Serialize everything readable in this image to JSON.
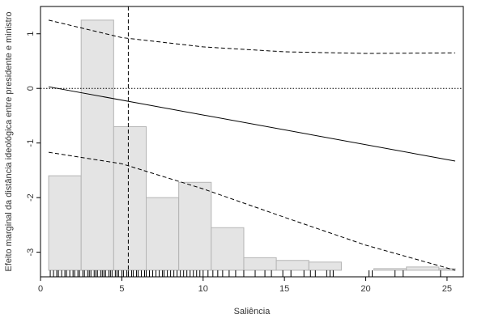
{
  "chart_data": {
    "type": "line",
    "title": "",
    "xlabel": "Saliência",
    "ylabel": "Efeito marginal da distância ideológica entre presidente e ministro",
    "xlim": [
      0,
      26
    ],
    "ylim": [
      -3.45,
      1.5
    ],
    "x_ticks": [
      0,
      5,
      10,
      15,
      20,
      25
    ],
    "y_ticks": [
      1,
      0,
      -1,
      -2,
      -3
    ],
    "grid": false,
    "legend": "none",
    "series": [
      {
        "style": "solid",
        "x": [
          0.5,
          25.5
        ],
        "y": [
          0.03,
          -1.33
        ]
      },
      {
        "style": "dashed",
        "x": [
          0.5,
          5,
          10,
          15,
          20,
          25.5
        ],
        "y": [
          1.25,
          0.93,
          0.76,
          0.67,
          0.64,
          0.65
        ]
      },
      {
        "style": "dashed",
        "x": [
          0.5,
          5,
          10,
          15,
          20,
          25.5
        ],
        "y": [
          -1.17,
          -1.38,
          -1.84,
          -2.36,
          -2.87,
          -3.33
        ]
      }
    ],
    "reference_lines": {
      "horizontal_y": 0,
      "vertical_x": 5.4
    },
    "histogram": {
      "bin_edges": [
        0.5,
        2.5,
        4.5,
        6.5,
        8.5,
        10.5,
        12.5,
        14.5,
        16.5,
        18.5,
        20.5,
        22.5,
        24.5,
        25.5
      ],
      "tops": [
        -1.6,
        1.25,
        -0.7,
        -2.0,
        -1.72,
        -2.55,
        -3.1,
        -3.15,
        -3.18,
        -3.33,
        -3.3,
        -3.27,
        -3.3
      ],
      "baseline": -3.33
    },
    "rug_x": [
      0.6,
      0.8,
      1.0,
      1.1,
      1.3,
      1.5,
      1.6,
      1.8,
      2.0,
      2.1,
      2.3,
      2.4,
      2.6,
      2.7,
      2.9,
      3.0,
      3.1,
      3.3,
      3.4,
      3.5,
      3.7,
      3.8,
      3.9,
      4.0,
      4.2,
      4.3,
      4.4,
      4.6,
      4.7,
      4.8,
      5.0,
      5.1,
      5.3,
      5.4,
      5.6,
      5.7,
      5.9,
      6.0,
      6.2,
      6.4,
      6.5,
      6.7,
      6.9,
      7.1,
      7.3,
      7.5,
      7.6,
      7.8,
      8.0,
      8.2,
      8.4,
      8.6,
      8.8,
      9.0,
      9.2,
      9.4,
      9.6,
      9.8,
      10.0,
      10.3,
      10.6,
      10.9,
      11.2,
      11.6,
      12.0,
      12.5,
      13.2,
      13.8,
      14.2,
      14.9,
      15.4,
      16.2,
      16.6,
      16.9,
      17.6,
      17.8,
      18.0,
      20.2,
      20.4,
      21.8,
      22.3,
      24.6
    ]
  }
}
